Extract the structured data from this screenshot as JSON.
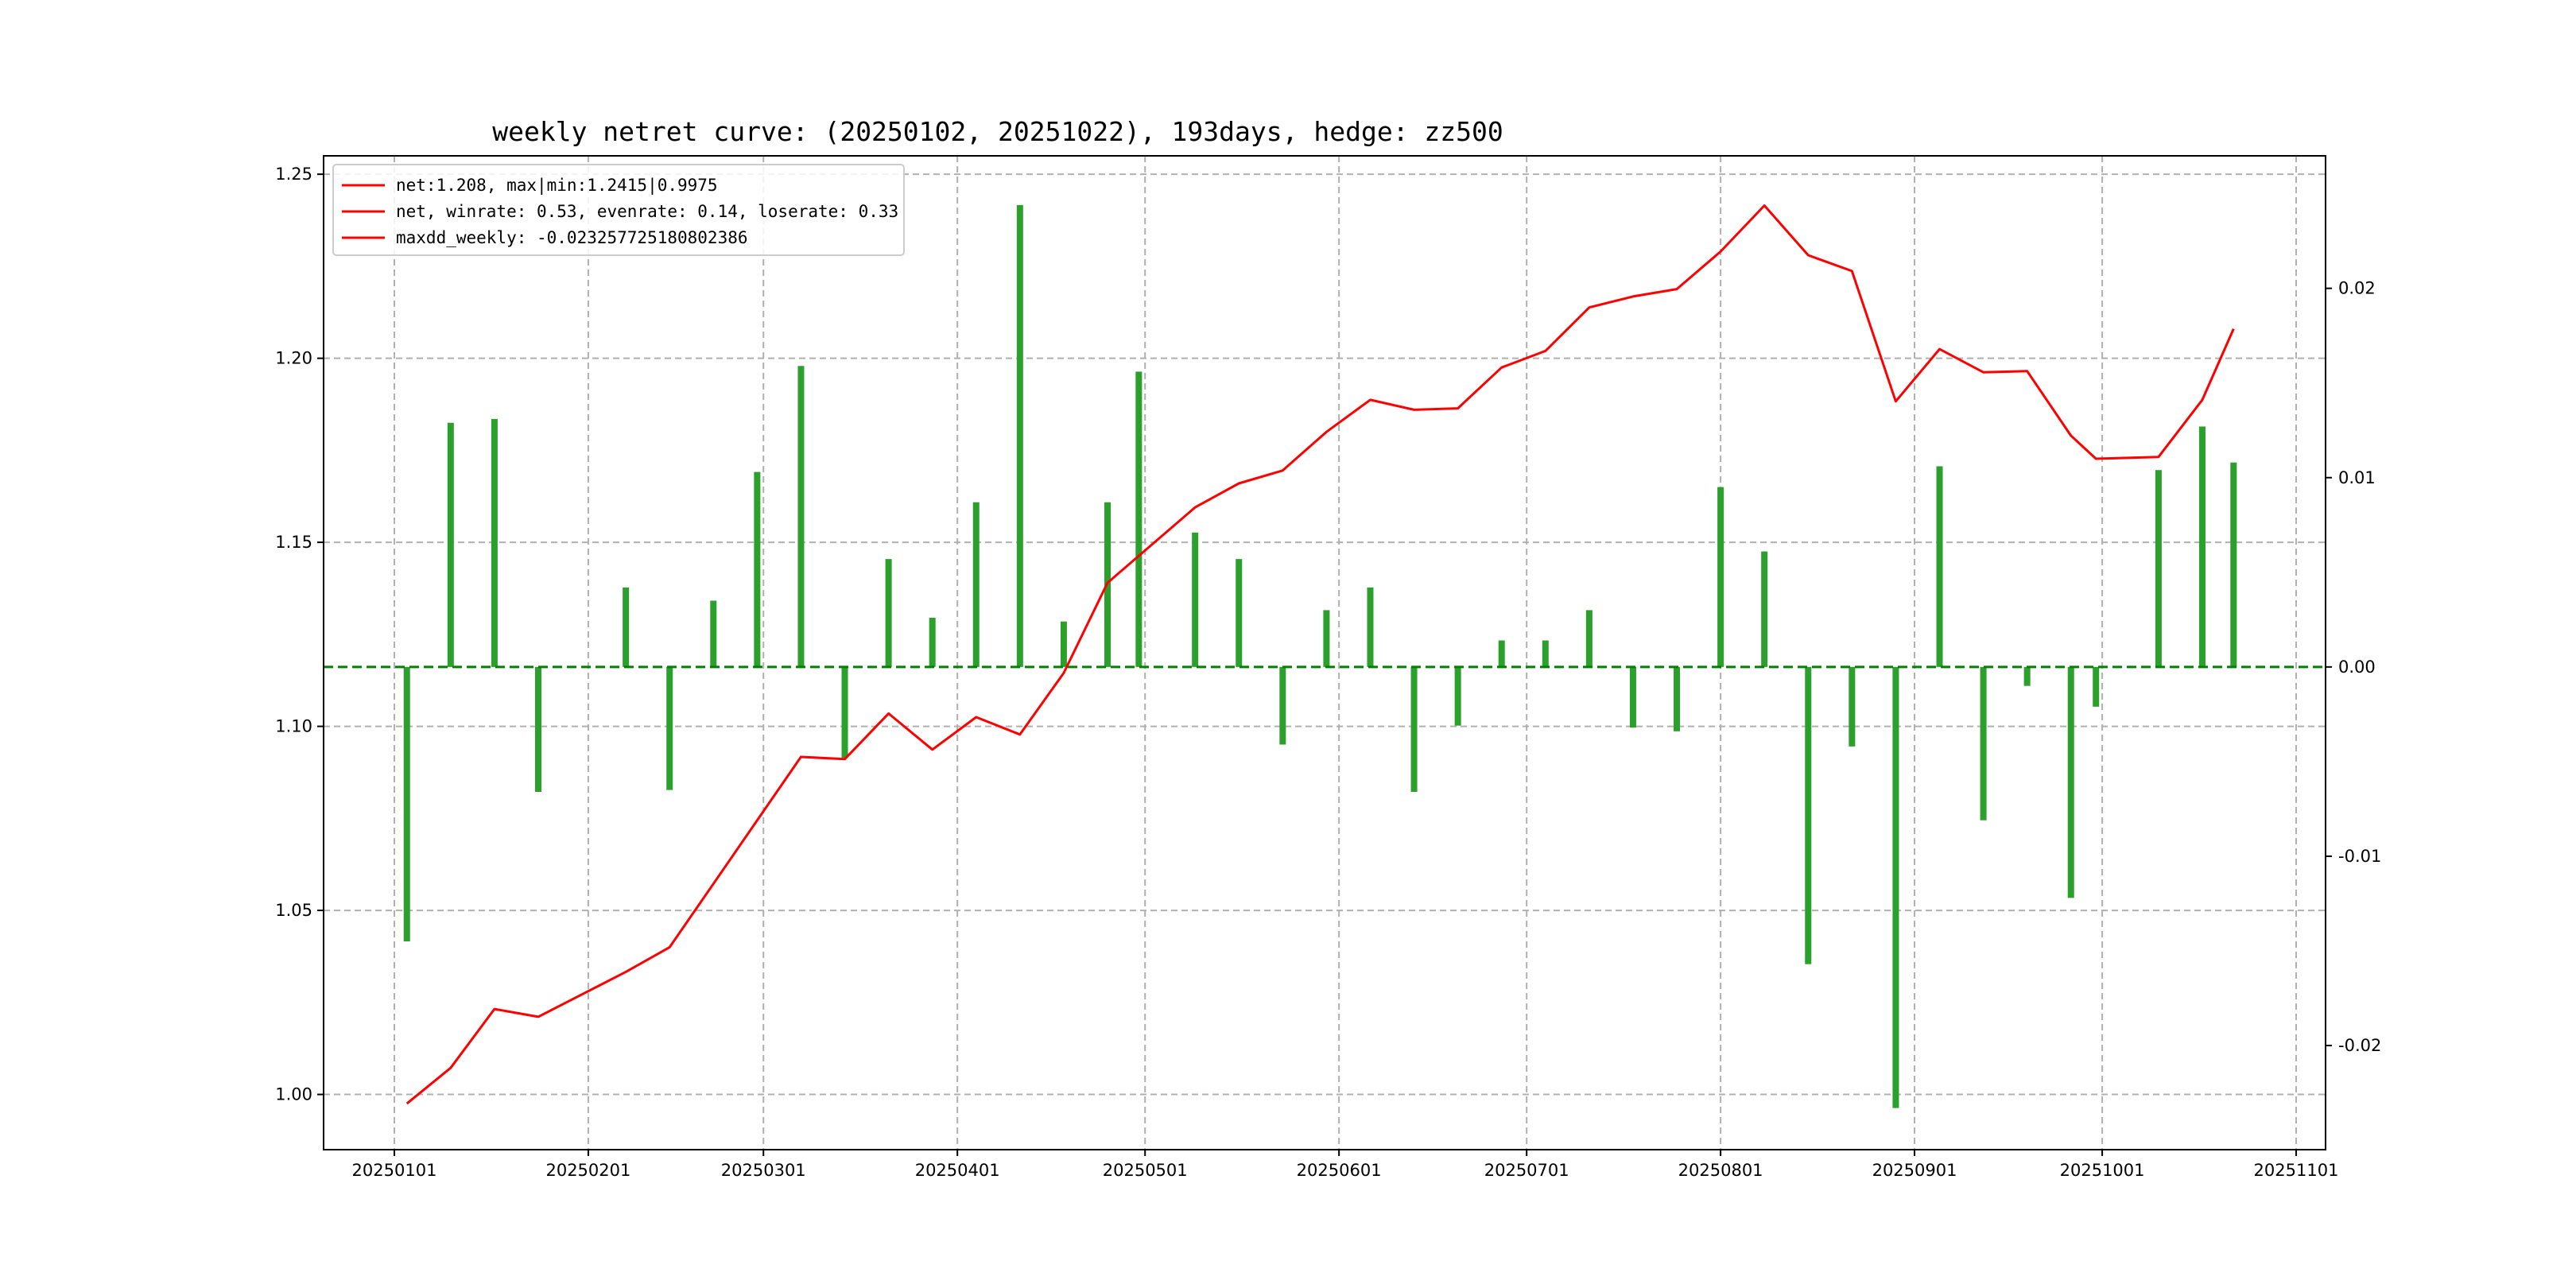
{
  "chart_data": {
    "type": "line",
    "title": "weekly netret curve: (20250102, 20251022), 193days, hedge: zz500",
    "x_tick_labels": [
      "20250101",
      "20250201",
      "20250301",
      "20250401",
      "20250501",
      "20250601",
      "20250701",
      "20250801",
      "20250901",
      "20251001",
      "20251101"
    ],
    "left_axis": {
      "ticks": [
        "1.00",
        "1.05",
        "1.10",
        "1.15",
        "1.20",
        "1.25"
      ],
      "ylim": [
        0.985,
        1.255
      ]
    },
    "right_axis": {
      "ticks": [
        "-0.02",
        "-0.01",
        "0.00",
        "0.01",
        "0.02"
      ],
      "ylim": [
        -0.0255,
        0.027
      ]
    },
    "grid": true,
    "legend_position": "top-left",
    "legend": [
      "net:1.208, max|min:1.2415|0.9975",
      "net, winrate: 0.53, evenrate: 0.14, loserate: 0.33",
      "maxdd_weekly: -0.023257725180802386"
    ],
    "line_color": "#ff0000",
    "bar_color": "#2ca02c",
    "zero_line_color": "#008000",
    "line_series": {
      "name": "net",
      "points": [
        [
          "20250103",
          0.9975
        ],
        [
          "20250110",
          1.0072
        ],
        [
          "20250117",
          1.0232
        ],
        [
          "20250124",
          1.0211
        ],
        [
          "20250207",
          1.0333
        ],
        [
          "20250214",
          1.04
        ],
        [
          "20250307",
          1.0917
        ],
        [
          "20250314",
          1.0911
        ],
        [
          "20250321",
          1.1035
        ],
        [
          "20250328",
          1.0937
        ],
        [
          "20250404",
          1.1025
        ],
        [
          "20250411",
          1.0978
        ],
        [
          "20250418",
          1.1145
        ],
        [
          "20250425",
          1.139
        ],
        [
          "20250509",
          1.1595
        ],
        [
          "20250516",
          1.166
        ],
        [
          "20250523",
          1.1695
        ],
        [
          "20250530",
          1.18
        ],
        [
          "20250606",
          1.1887
        ],
        [
          "20250613",
          1.186
        ],
        [
          "20250620",
          1.1864
        ],
        [
          "20250627",
          1.1975
        ],
        [
          "20250704",
          1.202
        ],
        [
          "20250711",
          1.2138
        ],
        [
          "20250718",
          1.2168
        ],
        [
          "20250725",
          1.2188
        ],
        [
          "20250801",
          1.229
        ],
        [
          "20250808",
          1.2415
        ],
        [
          "20250815",
          1.228
        ],
        [
          "20250822",
          1.2237
        ],
        [
          "20250829",
          1.1883
        ],
        [
          "20250905",
          1.2025
        ],
        [
          "20250912",
          1.1962
        ],
        [
          "20250919",
          1.1965
        ],
        [
          "20250926",
          1.179
        ],
        [
          "20250930",
          1.1727
        ],
        [
          "20251010",
          1.1732
        ],
        [
          "20251017",
          1.1887
        ],
        [
          "20251022",
          1.208
        ]
      ]
    },
    "bar_series": {
      "name": "weekly return",
      "points": [
        [
          "20250103",
          -0.0145
        ],
        [
          "20250110",
          0.0129
        ],
        [
          "20250117",
          0.0131
        ],
        [
          "20250124",
          -0.0066
        ],
        [
          "20250207",
          0.0042
        ],
        [
          "20250214",
          -0.0065
        ],
        [
          "20250221",
          0.0035
        ],
        [
          "20250228",
          0.0103
        ],
        [
          "20250307",
          0.0159
        ],
        [
          "20250314",
          -0.0048
        ],
        [
          "20250321",
          0.0057
        ],
        [
          "20250328",
          0.0026
        ],
        [
          "20250404",
          0.0087
        ],
        [
          "20250411",
          0.0244
        ],
        [
          "20250418",
          0.0024
        ],
        [
          "20250425",
          0.0087
        ],
        [
          "20250430",
          0.0156
        ],
        [
          "20250509",
          0.0071
        ],
        [
          "20250516",
          0.0057
        ],
        [
          "20250523",
          -0.0041
        ],
        [
          "20250530",
          0.003
        ],
        [
          "20250606",
          0.0042
        ],
        [
          "20250613",
          -0.0066
        ],
        [
          "20250620",
          -0.0031
        ],
        [
          "20250627",
          0.0014
        ],
        [
          "20250704",
          0.0014
        ],
        [
          "20250711",
          0.003
        ],
        [
          "20250718",
          -0.0032
        ],
        [
          "20250725",
          -0.0034
        ],
        [
          "20250801",
          0.0095
        ],
        [
          "20250808",
          0.0061
        ],
        [
          "20250815",
          -0.0157
        ],
        [
          "20250822",
          -0.0042
        ],
        [
          "20250829",
          -0.0233
        ],
        [
          "20250905",
          0.0106
        ],
        [
          "20250912",
          -0.0081
        ],
        [
          "20250919",
          -0.001
        ],
        [
          "20250926",
          -0.0122
        ],
        [
          "20250930",
          -0.0021
        ],
        [
          "20251010",
          0.0104
        ],
        [
          "20251017",
          0.0127
        ],
        [
          "20251022",
          0.0108
        ]
      ]
    }
  }
}
